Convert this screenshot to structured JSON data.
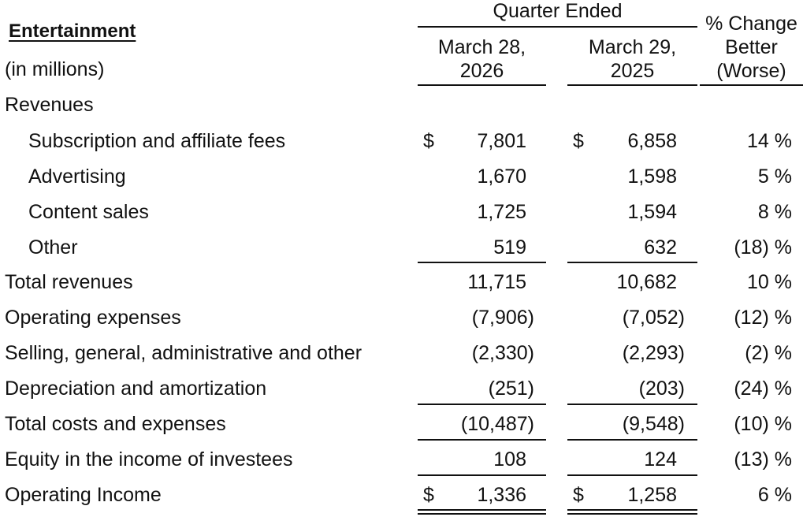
{
  "header": {
    "title": "Entertainment",
    "units": "(in millions)",
    "quarter_ended": "Quarter Ended",
    "col1": "March 28, 2026",
    "col2": "March 29, 2025",
    "pct_change": "% Change Better (Worse)"
  },
  "rows": [
    {
      "label": "Revenues",
      "indent": false,
      "v1": "",
      "v2": "",
      "pct": "",
      "dollar": false
    },
    {
      "label": "Subscription and affiliate fees",
      "indent": true,
      "v1": "7,801",
      "v2": "6,858",
      "pct": "14 %",
      "dollar": true
    },
    {
      "label": "Advertising",
      "indent": true,
      "v1": "1,670",
      "v2": "1,598",
      "pct": "5 %",
      "dollar": false
    },
    {
      "label": "Content sales",
      "indent": true,
      "v1": "1,725",
      "v2": "1,594",
      "pct": "8 %",
      "dollar": false
    },
    {
      "label": "Other",
      "indent": true,
      "v1": "519",
      "v2": "632",
      "pct": "(18) %",
      "dollar": false
    },
    {
      "label": "Total revenues",
      "indent": false,
      "v1": "11,715",
      "v2": "10,682",
      "pct": "10 %",
      "dollar": false
    },
    {
      "label": "Operating expenses",
      "indent": false,
      "v1": "(7,906)",
      "v2": "(7,052)",
      "pct": "(12) %",
      "dollar": false
    },
    {
      "label": "Selling, general, administrative and other",
      "indent": false,
      "v1": "(2,330)",
      "v2": "(2,293)",
      "pct": "(2) %",
      "dollar": false
    },
    {
      "label": "Depreciation and amortization",
      "indent": false,
      "v1": "(251)",
      "v2": "(203)",
      "pct": "(24) %",
      "dollar": false
    },
    {
      "label": "Total costs and expenses",
      "indent": false,
      "v1": "(10,487)",
      "v2": "(9,548)",
      "pct": "(10) %",
      "dollar": false
    },
    {
      "label": "Equity in the income of investees",
      "indent": false,
      "v1": "108",
      "v2": "124",
      "pct": "(13) %",
      "dollar": false
    },
    {
      "label": "Operating Income",
      "indent": false,
      "v1": "1,336",
      "v2": "1,258",
      "pct": "6 %",
      "dollar": true
    }
  ],
  "currency_symbol": "$"
}
